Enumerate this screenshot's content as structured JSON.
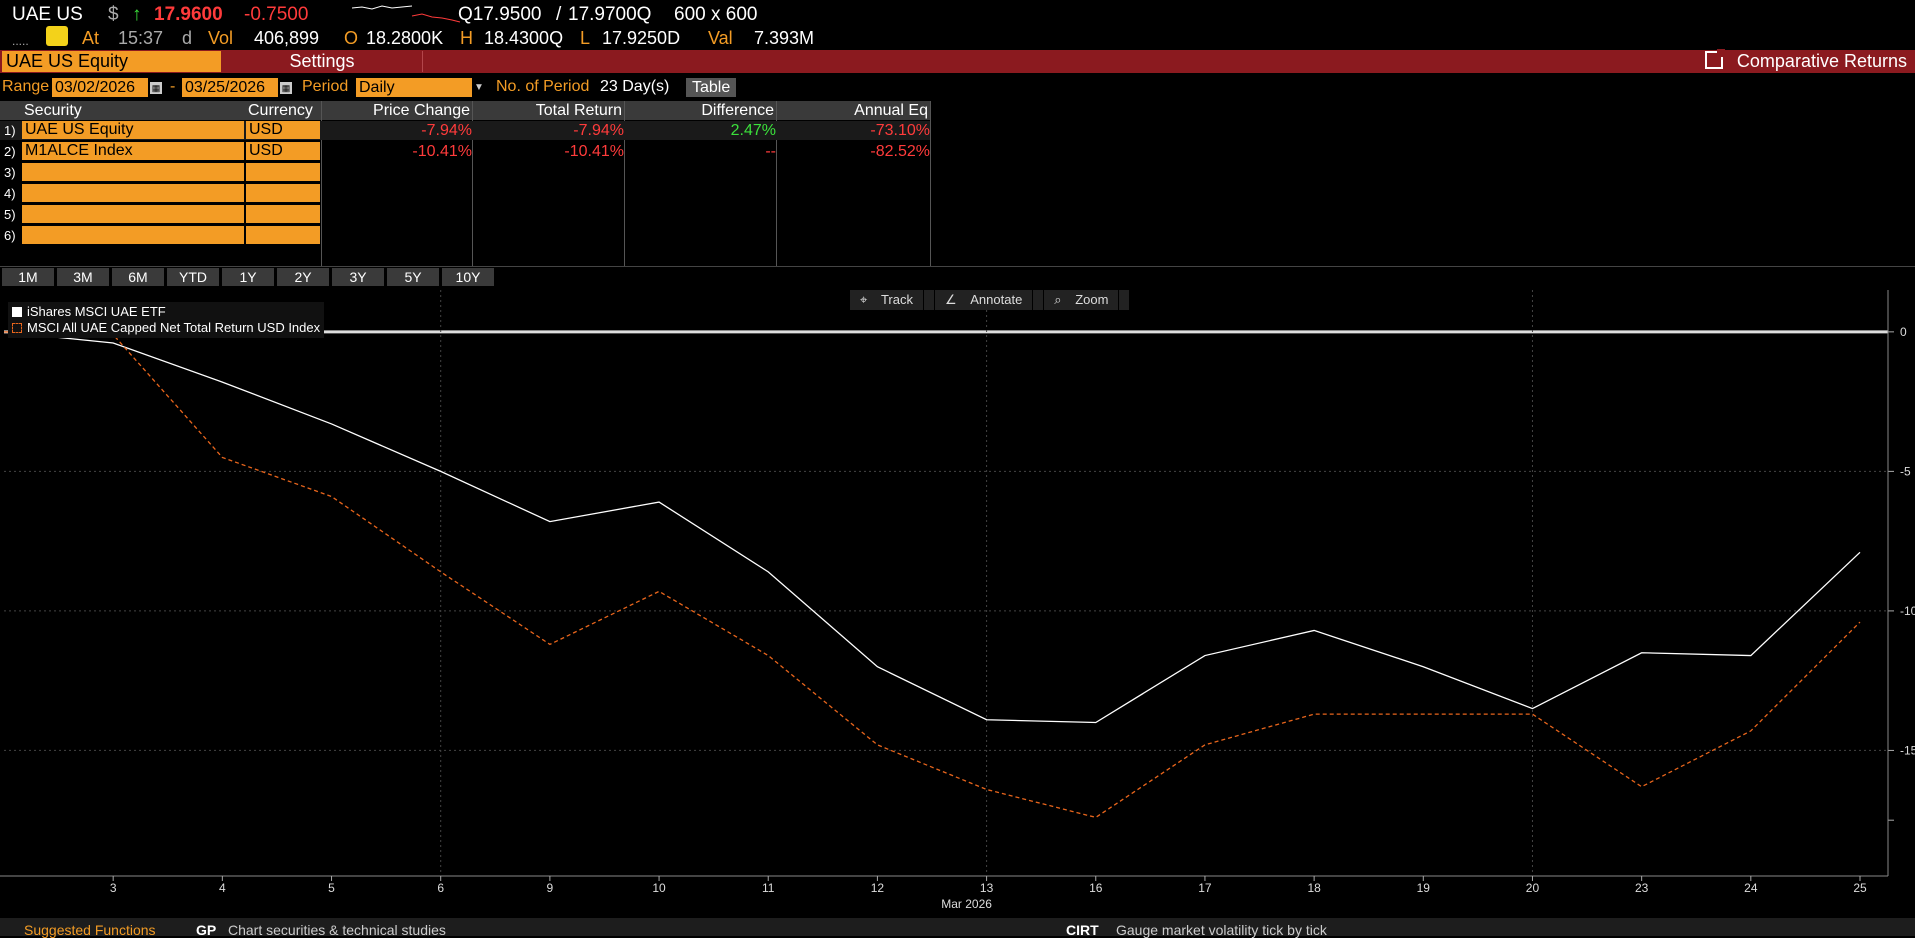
{
  "quote": {
    "ticker": "UAE US",
    "currency_symbol": "$",
    "arrow": "↑",
    "last": "17.9600",
    "change": "-0.7500",
    "bid": "Q17.9500",
    "sep": "/",
    "ask": "17.9700Q",
    "size": "600 x 600",
    "dots": ".....",
    "at_label": "At",
    "time": "15:37",
    "time_suffix": "d",
    "vol_label": "Vol",
    "vol": "406,899",
    "o_label": "O",
    "open": "18.2800K",
    "h_label": "H",
    "high": "18.4300Q",
    "l_label": "L",
    "low": "17.9250D",
    "val_label": "Val",
    "val": "7.393M"
  },
  "titlebar": {
    "security": "UAE US Equity",
    "settings": "Settings",
    "function_title": "Comparative Returns"
  },
  "range": {
    "label": "Range",
    "start": "03/02/2026",
    "dash": "-",
    "end": "03/25/2026",
    "period_label": "Period",
    "period_value": "Daily",
    "num_period_label": "No. of Period",
    "num_period_value": "23 Day(s)",
    "table_btn": "Table"
  },
  "table": {
    "headers": [
      "Security",
      "Currency",
      "Price Change",
      "Total Return",
      "Difference",
      "Annual Eq"
    ],
    "rows": [
      {
        "num": "1)",
        "security": "UAE US Equity",
        "currency": "USD",
        "price_change": "-7.94%",
        "total_return": "-7.94%",
        "difference": "2.47%",
        "annual_eq": "-73.10%"
      },
      {
        "num": "2)",
        "security": "M1ALCE Index",
        "currency": "USD",
        "price_change": "-10.41%",
        "total_return": "-10.41%",
        "difference": "--",
        "annual_eq": "-82.52%"
      },
      {
        "num": "3)",
        "security": "",
        "currency": ""
      },
      {
        "num": "4)",
        "security": "",
        "currency": ""
      },
      {
        "num": "5)",
        "security": "",
        "currency": ""
      },
      {
        "num": "6)",
        "security": "",
        "currency": ""
      }
    ]
  },
  "periods": [
    "1M",
    "3M",
    "6M",
    "YTD",
    "1Y",
    "2Y",
    "3Y",
    "5Y",
    "10Y"
  ],
  "tools": [
    "Track",
    "Annotate",
    "Zoom"
  ],
  "chart_data": {
    "type": "line",
    "x": [
      "2",
      "3",
      "4",
      "5",
      "6",
      "9",
      "10",
      "11",
      "12",
      "13",
      "16",
      "17",
      "18",
      "19",
      "20",
      "23",
      "24",
      "25"
    ],
    "x_tick_labels": [
      "3",
      "4",
      "5",
      "6",
      "9",
      "10",
      "11",
      "12",
      "13",
      "16",
      "17",
      "18",
      "19",
      "20",
      "23",
      "24",
      "25"
    ],
    "xlabel": "Mar 2026",
    "ylim": [
      -19.5,
      1.5
    ],
    "y_ticks": [
      0,
      -5,
      -10,
      -15
    ],
    "y_tick_labels": [
      "0",
      "-5",
      "-10",
      "-15"
    ],
    "grid": true,
    "legend_position": "top-left",
    "series": [
      {
        "name": "iShares MSCI UAE ETF",
        "color": "#ffffff",
        "style": "solid",
        "values": [
          0,
          -0.4,
          -1.8,
          -3.3,
          -5.0,
          -6.8,
          -6.1,
          -8.6,
          -12.0,
          -13.9,
          -14.0,
          -11.6,
          -10.7,
          -12.0,
          -13.5,
          -11.5,
          -11.6,
          -7.9
        ]
      },
      {
        "name": "MSCI All UAE Capped Net Total Return USD Index",
        "color": "#e8651c",
        "style": "dashed",
        "values": [
          0,
          -0.1,
          -4.5,
          -5.9,
          -8.6,
          -11.2,
          -9.3,
          -11.6,
          -14.8,
          -16.4,
          -17.4,
          -14.8,
          -13.7,
          -13.7,
          -13.7,
          -16.3,
          -14.3,
          -10.4
        ]
      }
    ]
  },
  "bottom": {
    "suggested": "Suggested Functions",
    "gp_code": "GP",
    "gp_desc": "Chart securities & technical studies",
    "cirt_code": "CIRT",
    "cirt_desc": "Gauge market volatility tick by tick"
  }
}
